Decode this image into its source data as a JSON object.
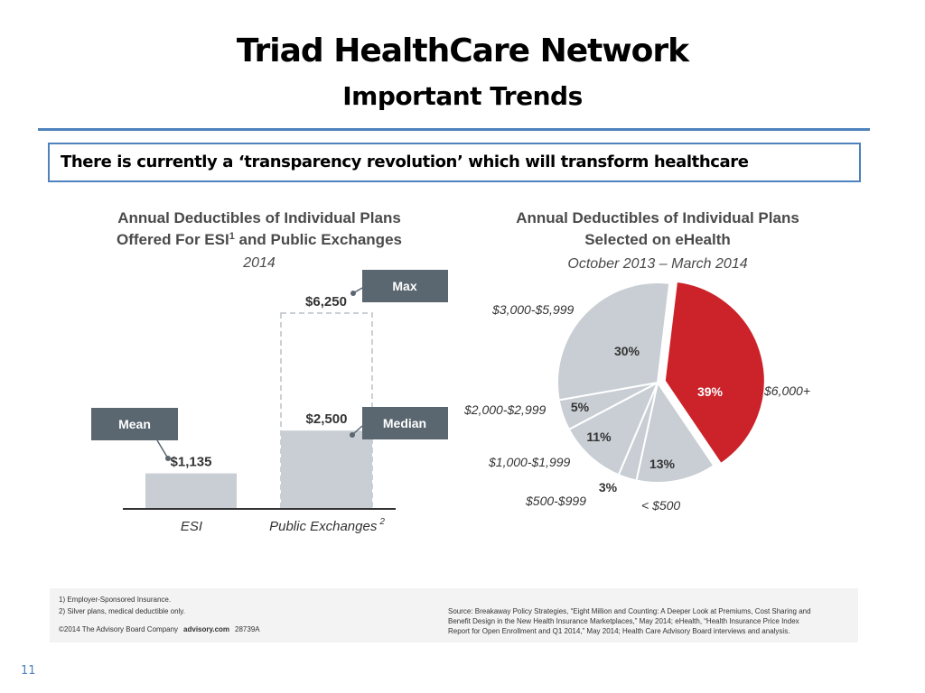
{
  "slide": {
    "title": "Triad HealthCare Network",
    "subtitle": "Important Trends",
    "callout": "There is currently a ‘transparency revolution’ which will transform healthcare",
    "page_number": "11"
  },
  "colors": {
    "accent": "#4f81bd",
    "bar": "#c8ced3",
    "tag": "#5a6670",
    "pie_gray": "#c8ced3",
    "pie_red": "#cc2229"
  },
  "chart_data": [
    {
      "type": "bar",
      "title": "Annual Deductibles of Individual Plans",
      "title_line2": "Offered For ESI",
      "title_sup": "1",
      "title_line2_end": " and Public Exchanges",
      "subtitle": "2014",
      "categories": [
        "ESI",
        "Public Exchanges"
      ],
      "category_sup": [
        "",
        "2"
      ],
      "values": [
        1135,
        2500
      ],
      "value_labels": [
        "$1,135",
        "$2,500"
      ],
      "max_value": 6250,
      "max_label": "$6,250",
      "tags": {
        "esi": "Mean",
        "median": "Median",
        "max": "Max"
      },
      "ylim": [
        0,
        6250
      ]
    },
    {
      "type": "pie",
      "title": "Annual Deductibles of Individual Plans",
      "title_line2": "Selected on eHealth",
      "subtitle": "October 2013 – March 2014",
      "slices": [
        {
          "label": "$6,000+",
          "value": 39,
          "pct": "39%",
          "highlight": true
        },
        {
          "label": "< $500",
          "value": 13,
          "pct": "13%",
          "highlight": false
        },
        {
          "label": "$500-$999",
          "value": 3,
          "pct": "3%",
          "highlight": false
        },
        {
          "label": "$1,000-$1,999",
          "value": 11,
          "pct": "11%",
          "highlight": false
        },
        {
          "label": "$2,000-$2,999",
          "value": 5,
          "pct": "5%",
          "highlight": false
        },
        {
          "label": "$3,000-$5,999",
          "value": 30,
          "pct": "30%",
          "highlight": false
        }
      ]
    }
  ],
  "footnotes": {
    "note1": "1)  Employer-Sponsored Insurance.",
    "note2": "2)  Silver plans, medical deductible only.",
    "copyright": "©2014 The Advisory Board Company",
    "site": "advisory.com",
    "code": "28739A",
    "source_lines": [
      "Source: Breakaway Policy Strategies, “Eight Million and Counting: A Deeper Look at Premiums, Cost Sharing and",
      "Benefit Design in the New Health Insurance Marketplaces,” May 2014; eHealth, “Health Insurance Price Index",
      "Report for Open Enrollment and Q1 2014,” May 2014; Health Care Advisory Board interviews and analysis."
    ]
  }
}
